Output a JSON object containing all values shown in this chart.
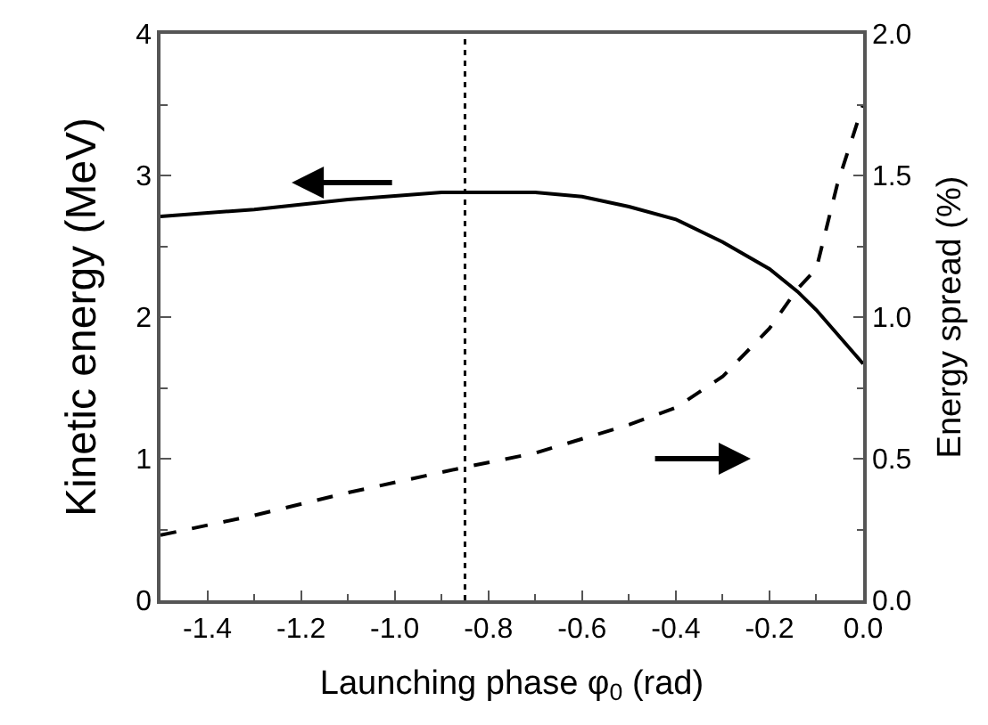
{
  "chart_data": {
    "type": "line",
    "xlabel": "Launching phase φ$_{0}$ (rad)",
    "ylabel": "Kinetic energy (MeV)",
    "y2label": "Energy spread (%)",
    "xlim": [
      -1.5,
      0.0
    ],
    "xticks": [
      -1.4,
      -1.2,
      {
        "value": -1,
        "label": "-1.0"
      },
      -0.8,
      -0.6,
      -0.4,
      -0.2,
      {
        "value": 0,
        "label": "0.0"
      }
    ],
    "ylim": [
      0,
      4
    ],
    "yticks": [
      0,
      1,
      2,
      3,
      4
    ],
    "y2lim": [
      0.0,
      2.0
    ],
    "y2ticks": [
      {
        "value": 0,
        "label": "0.0"
      },
      {
        "value": 0.5,
        "label": "0.5"
      },
      {
        "value": 1,
        "label": "1.0"
      },
      {
        "value": 1.5,
        "label": "1.5"
      },
      {
        "value": 2,
        "label": "2.0"
      }
    ],
    "series": [
      {
        "color": "#000000",
        "line_style": "solid",
        "x": [
          -1.5,
          -1.3,
          -1.1,
          -0.9,
          -0.85,
          -0.7,
          -0.6,
          -0.5,
          -0.4,
          -0.3,
          -0.2,
          -0.14,
          -0.1,
          0.0
        ],
        "values": [
          2.71,
          2.76,
          2.83,
          2.88,
          2.88,
          2.88,
          2.85,
          2.78,
          2.69,
          2.53,
          2.34,
          2.18,
          2.05,
          1.67
        ]
      },
      {
        "color": "#000000",
        "line_style": "dashed",
        "axis": "y2",
        "x": [
          -1.5,
          -1.3,
          -1.1,
          -0.85,
          -0.7,
          -0.5,
          -0.4,
          -0.3,
          -0.2,
          -0.14,
          -0.1,
          -0.055,
          0.0
        ],
        "values": [
          0.23,
          0.3,
          0.38,
          0.47,
          0.52,
          0.62,
          0.68,
          0.79,
          0.96,
          1.1,
          1.17,
          1.47,
          1.75
        ]
      }
    ],
    "ref_lines": [
      {
        "axis": "x",
        "value": -0.85,
        "color": "#000000",
        "line_style": "dotted"
      }
    ],
    "legend": false,
    "marker": "none"
  }
}
